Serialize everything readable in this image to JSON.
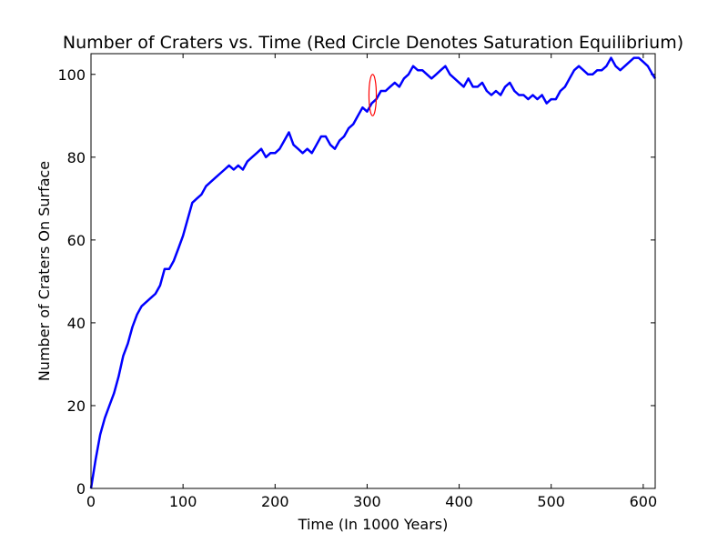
{
  "chart_data": {
    "type": "line",
    "title": "Number of Craters vs. Time (Red Circle Denotes Saturation Equilibrium)",
    "xlabel": "Time (In 1000 Years)",
    "ylabel": "Number of Craters On Surface",
    "xlim": [
      0,
      613
    ],
    "ylim": [
      0,
      105
    ],
    "xticks": [
      0,
      100,
      200,
      300,
      400,
      500,
      600
    ],
    "yticks": [
      0,
      20,
      40,
      60,
      80,
      100
    ],
    "grid": false,
    "series": [
      {
        "color": "#0000ff",
        "x": [
          0,
          5,
          10,
          15,
          20,
          25,
          30,
          35,
          40,
          45,
          50,
          55,
          60,
          65,
          70,
          75,
          80,
          85,
          90,
          95,
          100,
          105,
          110,
          115,
          120,
          125,
          130,
          135,
          140,
          145,
          150,
          155,
          160,
          165,
          170,
          175,
          180,
          185,
          190,
          195,
          200,
          205,
          210,
          215,
          220,
          225,
          230,
          235,
          240,
          245,
          250,
          255,
          260,
          265,
          270,
          275,
          280,
          285,
          290,
          295,
          300,
          305,
          310,
          315,
          320,
          325,
          330,
          335,
          340,
          345,
          350,
          355,
          360,
          365,
          370,
          375,
          380,
          385,
          390,
          395,
          400,
          405,
          410,
          415,
          420,
          425,
          430,
          435,
          440,
          445,
          450,
          455,
          460,
          465,
          470,
          475,
          480,
          485,
          490,
          495,
          500,
          505,
          510,
          515,
          520,
          525,
          530,
          535,
          540,
          545,
          550,
          555,
          560,
          565,
          570,
          575,
          580,
          585,
          590,
          595,
          600,
          605,
          610,
          613
        ],
        "y": [
          0,
          7,
          13,
          17,
          20,
          23,
          27,
          32,
          35,
          39,
          42,
          44,
          45,
          46,
          47,
          49,
          53,
          53,
          55,
          58,
          61,
          65,
          69,
          70,
          71,
          73,
          74,
          75,
          76,
          77,
          78,
          77,
          78,
          77,
          79,
          80,
          81,
          82,
          80,
          81,
          81,
          82,
          84,
          86,
          83,
          82,
          81,
          82,
          81,
          83,
          85,
          85,
          83,
          82,
          84,
          85,
          87,
          88,
          90,
          92,
          91,
          93,
          94,
          96,
          96,
          97,
          98,
          97,
          99,
          100,
          102,
          101,
          101,
          100,
          99,
          100,
          101,
          102,
          100,
          99,
          98,
          97,
          99,
          97,
          97,
          98,
          96,
          95,
          96,
          95,
          97,
          98,
          96,
          95,
          95,
          94,
          95,
          94,
          95,
          93,
          94,
          94,
          96,
          97,
          99,
          101,
          102,
          101,
          100,
          100,
          101,
          101,
          102,
          104,
          102,
          101,
          102,
          103,
          104,
          104,
          103,
          102,
          100,
          99
        ]
      }
    ],
    "annotations": [
      {
        "shape": "ellipse",
        "color": "#ff0000",
        "cx": 306,
        "cy": 95,
        "rx": 4,
        "ry": 5
      }
    ]
  }
}
